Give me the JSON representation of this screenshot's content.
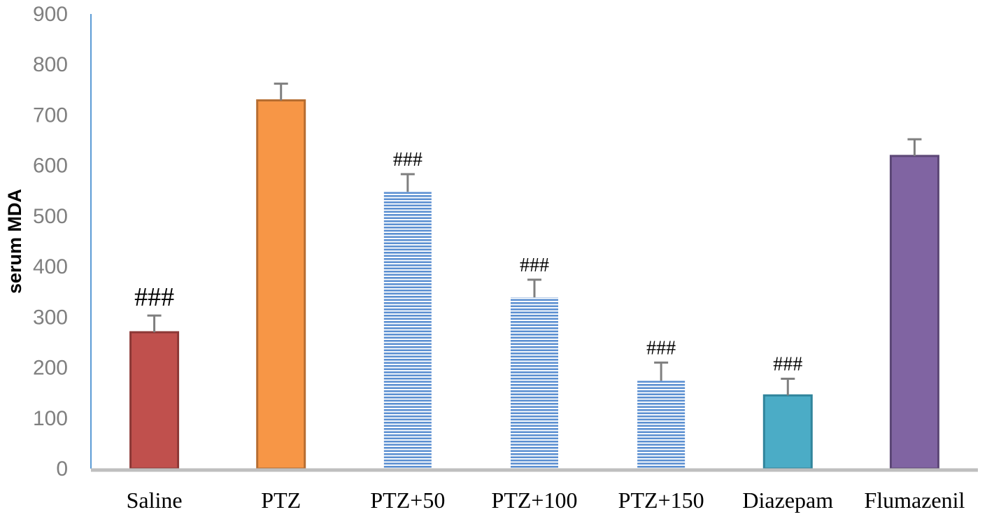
{
  "chart_data": {
    "type": "bar",
    "ylabel": "serum MDA",
    "ylim": [
      0,
      900
    ],
    "yticks": [
      "0",
      "100",
      "200",
      "300",
      "400",
      "500",
      "600",
      "700",
      "800",
      "900"
    ],
    "grid": false,
    "categories": [
      "Saline",
      "PTZ",
      "PTZ+50",
      "PTZ+100",
      "PTZ+150",
      "Diazepam",
      "Flumazenil"
    ],
    "values": [
      270,
      729,
      548,
      339,
      174,
      145,
      619
    ],
    "errors": [
      33,
      33,
      35,
      35,
      36,
      33,
      33
    ],
    "annotations": [
      "###",
      "",
      "###",
      "###",
      "###",
      "###",
      ""
    ],
    "colors": [
      {
        "fill": "#c0504d",
        "stroke": "#8c3836",
        "pattern": "solid"
      },
      {
        "fill": "#f79646",
        "stroke": "#b66d31",
        "pattern": "solid"
      },
      {
        "fill": "#4f81bd",
        "stroke": "#8db3e2",
        "pattern": "horizontal-stripes"
      },
      {
        "fill": "#4f81bd",
        "stroke": "#8db3e2",
        "pattern": "horizontal-stripes"
      },
      {
        "fill": "#4f81bd",
        "stroke": "#8db3e2",
        "pattern": "horizontal-stripes"
      },
      {
        "fill": "#4bacc6",
        "stroke": "#31859c",
        "pattern": "solid"
      },
      {
        "fill": "#8064a2",
        "stroke": "#5c4776",
        "pattern": "solid"
      }
    ],
    "axis_colors": {
      "y_axis": "#5b9bd5",
      "x_axis": "#bfbfbf",
      "error_bar": "#7f7f7f"
    }
  }
}
